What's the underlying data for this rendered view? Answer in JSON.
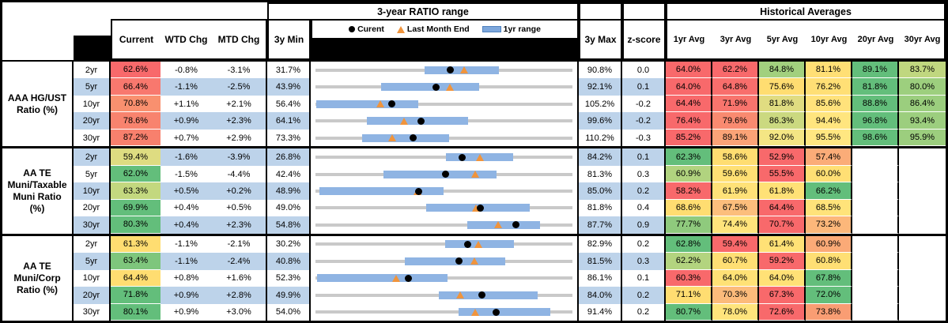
{
  "header": {
    "chart_title": "3-year RATIO range",
    "averages_title": "Historical Averages",
    "columns": {
      "current": "Current",
      "wtd": "WTD Chg",
      "mtd": "MTD Chg",
      "min": "3y Min",
      "max": "3y Max",
      "zscore": "z-score"
    },
    "avg_cols": [
      "1yr Avg",
      "3yr Avg",
      "5yr Avg",
      "10yr Avg",
      "20yr Avg",
      "30yr Avg"
    ],
    "legend": {
      "current": "Curent",
      "last_month": "Last Month End",
      "range": "1yr range"
    }
  },
  "colors": {
    "stripe": "#bdd3ea",
    "bar_1yr": "#8fb4e3",
    "gray_line": "#c9c9c9",
    "triangle": "#f0943c",
    "dot": "#000000",
    "scale_red": "#f8696b",
    "scale_yellow": "#ffdd71",
    "scale_green": "#63be7b"
  },
  "chart_data": {
    "type": "table",
    "note_axis": "each row bullet chart spans 3y Min to 3y Max; blue bar = 1yr range; dot = current; triangle = last month end (current - MTD chg)",
    "groups": [
      {
        "label_lines": [
          "AAA HG/UST",
          "Ratio (%)"
        ],
        "rows": [
          {
            "tenor": "2yr",
            "current": 62.6,
            "current_text": "62.6%",
            "current_bg": "#f8696b",
            "wtd": "-0.8%",
            "mtd": "-3.1%",
            "mtd_num": -3.1,
            "min": 31.7,
            "min_text": "31.7%",
            "max": 90.8,
            "max_text": "90.8%",
            "z": "0.0",
            "range_1yr": [
              56.6,
              73.6
            ],
            "avgs": [
              {
                "t": "64.0%",
                "bg": "#f8696b"
              },
              {
                "t": "62.2%",
                "bg": "#f8696b"
              },
              {
                "t": "84.8%",
                "bg": "#a2d07e"
              },
              {
                "t": "81.1%",
                "bg": "#ffdf75"
              },
              {
                "t": "89.1%",
                "bg": "#63be7b"
              },
              {
                "t": "83.7%",
                "bg": "#c0d77f"
              }
            ]
          },
          {
            "tenor": "5yr",
            "current": 66.4,
            "current_text": "66.4%",
            "current_bg": "#f8786e",
            "wtd": "-1.1%",
            "mtd": "-2.5%",
            "mtd_num": -2.5,
            "min": 43.9,
            "min_text": "43.9%",
            "max": 92.1,
            "max_text": "92.1%",
            "z": "0.1",
            "range_1yr": [
              56.2,
              74.4
            ],
            "avgs": [
              {
                "t": "64.0%",
                "bg": "#f8696b"
              },
              {
                "t": "64.8%",
                "bg": "#f86e6c"
              },
              {
                "t": "75.6%",
                "bg": "#ffdd71"
              },
              {
                "t": "76.2%",
                "bg": "#ffdf75"
              },
              {
                "t": "81.8%",
                "bg": "#63be7b"
              },
              {
                "t": "80.0%",
                "bg": "#9dcf7e"
              }
            ]
          },
          {
            "tenor": "10yr",
            "current": 70.8,
            "current_text": "70.8%",
            "current_bg": "#f9906f",
            "wtd": "+1.1%",
            "mtd": "+2.1%",
            "mtd_num": 2.1,
            "min": 56.4,
            "min_text": "56.4%",
            "max": 105.2,
            "max_text": "105.2%",
            "z": "-0.2",
            "range_1yr": [
              56.6,
              75.8
            ],
            "avgs": [
              {
                "t": "64.4%",
                "bg": "#f8696b"
              },
              {
                "t": "71.9%",
                "bg": "#f8746d"
              },
              {
                "t": "81.8%",
                "bg": "#e0dc81"
              },
              {
                "t": "85.6%",
                "bg": "#ffe27b"
              },
              {
                "t": "88.8%",
                "bg": "#63be7b"
              },
              {
                "t": "86.4%",
                "bg": "#9bce7e"
              }
            ]
          },
          {
            "tenor": "20yr",
            "current": 78.6,
            "current_text": "78.6%",
            "current_bg": "#f8836e",
            "wtd": "+0.9%",
            "mtd": "+2.3%",
            "mtd_num": 2.3,
            "min": 64.1,
            "min_text": "64.1%",
            "max": 99.6,
            "max_text": "99.6%",
            "z": "-0.2",
            "range_1yr": [
              71.2,
              85.0
            ],
            "avgs": [
              {
                "t": "76.4%",
                "bg": "#f8696b"
              },
              {
                "t": "79.6%",
                "bg": "#f98a70"
              },
              {
                "t": "86.3%",
                "bg": "#cbd980"
              },
              {
                "t": "94.4%",
                "bg": "#ffe57e"
              },
              {
                "t": "96.8%",
                "bg": "#63be7b"
              },
              {
                "t": "93.4%",
                "bg": "#9cce7e"
              }
            ]
          },
          {
            "tenor": "30yr",
            "current": 87.2,
            "current_text": "87.2%",
            "current_bg": "#f8806d",
            "wtd": "+0.7%",
            "mtd": "+2.9%",
            "mtd_num": 2.9,
            "min": 73.3,
            "min_text": "73.3%",
            "max": 110.2,
            "max_text": "110.2%",
            "z": "-0.3",
            "range_1yr": [
              80.0,
              92.4
            ],
            "avgs": [
              {
                "t": "85.2%",
                "bg": "#f8696b"
              },
              {
                "t": "89.1%",
                "bg": "#fba377"
              },
              {
                "t": "92.0%",
                "bg": "#f4e684"
              },
              {
                "t": "95.5%",
                "bg": "#ffe781"
              },
              {
                "t": "98.6%",
                "bg": "#63be7b"
              },
              {
                "t": "95.9%",
                "bg": "#9cce7e"
              }
            ]
          }
        ]
      },
      {
        "label_lines": [
          "AA TE",
          "Muni/Taxable",
          "Muni Ratio",
          "(%)"
        ],
        "rows": [
          {
            "tenor": "2yr",
            "current": 59.4,
            "current_text": "59.4%",
            "current_bg": "#dedc81",
            "wtd": "-1.6%",
            "mtd": "-3.9%",
            "mtd_num": -3.9,
            "min": 26.8,
            "min_text": "26.8%",
            "max": 84.2,
            "max_text": "84.2%",
            "z": "0.1",
            "range_1yr": [
              55.7,
              70.7
            ],
            "avgs": [
              {
                "t": "62.3%",
                "bg": "#63be7b"
              },
              {
                "t": "58.6%",
                "bg": "#ffdd71"
              },
              {
                "t": "52.9%",
                "bg": "#f8696b"
              },
              {
                "t": "57.4%",
                "bg": "#fbac78"
              },
              {
                "t": "",
                "bg": "#ffffff"
              },
              {
                "t": "",
                "bg": "#ffffff"
              }
            ]
          },
          {
            "tenor": "5yr",
            "current": 62.0,
            "current_text": "62.0%",
            "current_bg": "#63be7b",
            "wtd": "-1.5%",
            "mtd": "-4.4%",
            "mtd_num": -4.4,
            "min": 42.4,
            "min_text": "42.4%",
            "max": 81.3,
            "max_text": "81.3%",
            "z": "0.3",
            "range_1yr": [
              52.6,
              69.6
            ],
            "avgs": [
              {
                "t": "60.9%",
                "bg": "#b1d37f"
              },
              {
                "t": "59.6%",
                "bg": "#ffe074"
              },
              {
                "t": "55.5%",
                "bg": "#f8696b"
              },
              {
                "t": "60.0%",
                "bg": "#ffdf74"
              },
              {
                "t": "",
                "bg": "#ffffff"
              },
              {
                "t": "",
                "bg": "#ffffff"
              }
            ]
          },
          {
            "tenor": "10yr",
            "current": 63.3,
            "current_text": "63.3%",
            "current_bg": "#c3d87f",
            "wtd": "+0.5%",
            "mtd": "+0.2%",
            "mtd_num": 0.2,
            "min": 48.9,
            "min_text": "48.9%",
            "max": 85.0,
            "max_text": "85.0%",
            "z": "0.2",
            "range_1yr": [
              49.4,
              66.8
            ],
            "avgs": [
              {
                "t": "58.2%",
                "bg": "#f8696b"
              },
              {
                "t": "61.9%",
                "bg": "#ffe278"
              },
              {
                "t": "61.8%",
                "bg": "#ffe176"
              },
              {
                "t": "66.2%",
                "bg": "#63be7b"
              },
              {
                "t": "",
                "bg": "#ffffff"
              },
              {
                "t": "",
                "bg": "#ffffff"
              }
            ]
          },
          {
            "tenor": "20yr",
            "current": 69.9,
            "current_text": "69.9%",
            "current_bg": "#63be7b",
            "wtd": "+0.4%",
            "mtd": "+0.5%",
            "mtd_num": 0.5,
            "min": 49.0,
            "min_text": "49.0%",
            "max": 81.8,
            "max_text": "81.8%",
            "z": "0.4",
            "range_1yr": [
              63.0,
              76.2
            ],
            "avgs": [
              {
                "t": "68.6%",
                "bg": "#ffdd71"
              },
              {
                "t": "67.5%",
                "bg": "#fcbe7c"
              },
              {
                "t": "64.4%",
                "bg": "#f8696b"
              },
              {
                "t": "68.5%",
                "bg": "#ffe37a"
              },
              {
                "t": "",
                "bg": "#ffffff"
              },
              {
                "t": "",
                "bg": "#ffffff"
              }
            ]
          },
          {
            "tenor": "30yr",
            "current": 80.3,
            "current_text": "80.3%",
            "current_bg": "#63be7b",
            "wtd": "+0.4%",
            "mtd": "+2.3%",
            "mtd_num": 2.3,
            "min": 54.8,
            "min_text": "54.8%",
            "max": 87.7,
            "max_text": "87.7%",
            "z": "0.9",
            "range_1yr": [
              74.1,
              83.4
            ],
            "avgs": [
              {
                "t": "77.7%",
                "bg": "#8fca7d"
              },
              {
                "t": "74.4%",
                "bg": "#ffe47c"
              },
              {
                "t": "70.7%",
                "bg": "#f8696b"
              },
              {
                "t": "73.2%",
                "bg": "#fcb77a"
              },
              {
                "t": "",
                "bg": "#ffffff"
              },
              {
                "t": "",
                "bg": "#ffffff"
              }
            ]
          }
        ]
      },
      {
        "label_lines": [
          "AA TE",
          "Muni/Corp",
          "Ratio (%)"
        ],
        "rows": [
          {
            "tenor": "2yr",
            "current": 61.3,
            "current_text": "61.3%",
            "current_bg": "#ffdd71",
            "wtd": "-1.1%",
            "mtd": "-2.1%",
            "mtd_num": -2.1,
            "min": 30.2,
            "min_text": "30.2%",
            "max": 82.9,
            "max_text": "82.9%",
            "z": "0.2",
            "range_1yr": [
              56.7,
              70.7
            ],
            "avgs": [
              {
                "t": "62.8%",
                "bg": "#63be7b"
              },
              {
                "t": "59.4%",
                "bg": "#f8696b"
              },
              {
                "t": "61.4%",
                "bg": "#ffe176"
              },
              {
                "t": "60.9%",
                "bg": "#fbaa77"
              },
              {
                "t": "",
                "bg": "#ffffff"
              },
              {
                "t": "",
                "bg": "#ffffff"
              }
            ]
          },
          {
            "tenor": "5yr",
            "current": 63.4,
            "current_text": "63.4%",
            "current_bg": "#7ec67c",
            "wtd": "-1.1%",
            "mtd": "-2.4%",
            "mtd_num": -2.4,
            "min": 40.8,
            "min_text": "40.8%",
            "max": 81.5,
            "max_text": "81.5%",
            "z": "0.3",
            "range_1yr": [
              54.9,
              70.7
            ],
            "avgs": [
              {
                "t": "62.2%",
                "bg": "#b3d47f"
              },
              {
                "t": "60.7%",
                "bg": "#ffdf74"
              },
              {
                "t": "59.2%",
                "bg": "#f8696b"
              },
              {
                "t": "60.8%",
                "bg": "#ffdf74"
              },
              {
                "t": "",
                "bg": "#ffffff"
              },
              {
                "t": "",
                "bg": "#ffffff"
              }
            ]
          },
          {
            "tenor": "10yr",
            "current": 64.4,
            "current_text": "64.4%",
            "current_bg": "#ffdd71",
            "wtd": "+0.8%",
            "mtd": "+1.6%",
            "mtd_num": 1.6,
            "min": 52.3,
            "min_text": "52.3%",
            "max": 86.1,
            "max_text": "86.1%",
            "z": "0.1",
            "range_1yr": [
              52.5,
              69.6
            ],
            "avgs": [
              {
                "t": "60.3%",
                "bg": "#f8696b"
              },
              {
                "t": "64.0%",
                "bg": "#ffe176"
              },
              {
                "t": "64.0%",
                "bg": "#ffe176"
              },
              {
                "t": "67.8%",
                "bg": "#63be7b"
              },
              {
                "t": "",
                "bg": "#ffffff"
              },
              {
                "t": "",
                "bg": "#ffffff"
              }
            ]
          },
          {
            "tenor": "20yr",
            "current": 71.8,
            "current_text": "71.8%",
            "current_bg": "#63be7b",
            "wtd": "+0.9%",
            "mtd": "+2.8%",
            "mtd_num": 2.8,
            "min": 49.9,
            "min_text": "49.9%",
            "max": 84.0,
            "max_text": "84.0%",
            "z": "0.2",
            "range_1yr": [
              66.2,
              79.2
            ],
            "avgs": [
              {
                "t": "71.1%",
                "bg": "#ffdd71"
              },
              {
                "t": "70.3%",
                "bg": "#fcbb7b"
              },
              {
                "t": "67.3%",
                "bg": "#f8696b"
              },
              {
                "t": "72.0%",
                "bg": "#63be7b"
              },
              {
                "t": "",
                "bg": "#ffffff"
              },
              {
                "t": "",
                "bg": "#ffffff"
              }
            ]
          },
          {
            "tenor": "30yr",
            "current": 80.1,
            "current_text": "80.1%",
            "current_bg": "#63be7b",
            "wtd": "+0.9%",
            "mtd": "+3.0%",
            "mtd_num": 3.0,
            "min": 54.0,
            "min_text": "54.0%",
            "max": 91.4,
            "max_text": "91.4%",
            "z": "0.2",
            "range_1yr": [
              74.7,
              88.0
            ],
            "avgs": [
              {
                "t": "80.7%",
                "bg": "#63be7b"
              },
              {
                "t": "78.0%",
                "bg": "#ffe47c"
              },
              {
                "t": "72.6%",
                "bg": "#f8696b"
              },
              {
                "t": "73.8%",
                "bg": "#f99d73"
              },
              {
                "t": "",
                "bg": "#ffffff"
              },
              {
                "t": "",
                "bg": "#ffffff"
              }
            ]
          }
        ]
      }
    ]
  }
}
